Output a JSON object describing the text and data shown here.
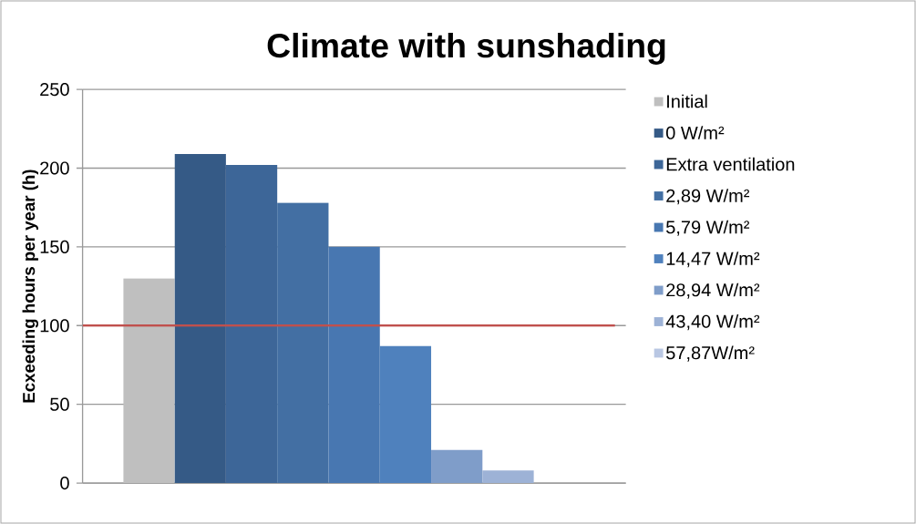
{
  "chart_data": {
    "type": "bar",
    "title": "Climate with sunshading",
    "ylabel": "Ecxeeding hours per year (h)",
    "categories": [
      null
    ],
    "series": [
      {
        "name": "Initial",
        "color": "#bfbfbf",
        "values": [
          130
        ]
      },
      {
        "name": "0 W/m²",
        "color": "#355a86",
        "values": [
          209
        ]
      },
      {
        "name": "Extra ventilation",
        "color": "#3d6698",
        "values": [
          202
        ]
      },
      {
        "name": "2,89 W/m²",
        "color": "#436fa3",
        "values": [
          178
        ]
      },
      {
        "name": "5,79 W/m²",
        "color": "#4877b1",
        "values": [
          150
        ]
      },
      {
        "name": "14,47 W/m²",
        "color": "#4f81bd",
        "values": [
          87
        ]
      },
      {
        "name": "28,94 W/m²",
        "color": "#7f9dc9",
        "values": [
          21
        ]
      },
      {
        "name": "43,40 W/m²",
        "color": "#9db2d6",
        "values": [
          8
        ]
      },
      {
        "name": "57,87W/m²",
        "color": "#b9c7e3",
        "values": [
          null
        ]
      }
    ],
    "ylim": [
      0,
      250
    ],
    "yticks": [
      0,
      50,
      100,
      150,
      200,
      250
    ],
    "ref_lines": [
      {
        "axis": "y",
        "value": 100,
        "color": "#c0504d"
      }
    ],
    "grid": "y",
    "legend": "right"
  }
}
